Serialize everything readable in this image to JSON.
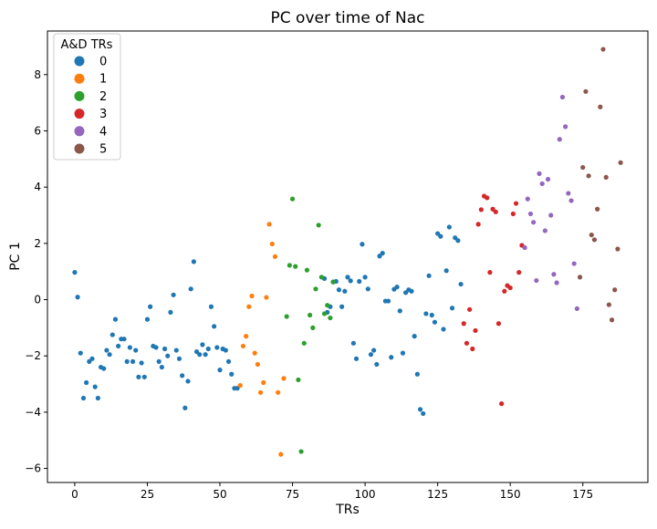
{
  "chart_data": {
    "type": "scatter",
    "title": "PC over time of Nac",
    "xlabel": "TRs",
    "ylabel": "PC 1",
    "xlim": [
      -9.4,
      197.4
    ],
    "ylim": [
      -6.5,
      9.55
    ],
    "xticks": [
      0,
      25,
      50,
      75,
      100,
      125,
      150,
      175
    ],
    "yticks": [
      -6,
      -4,
      -2,
      0,
      2,
      4,
      6,
      8
    ],
    "legend": {
      "title": "A&D TRs",
      "position": "top-left",
      "entries": [
        {
          "label": "0",
          "color": "#1f77b4"
        },
        {
          "label": "1",
          "color": "#ff7f0e"
        },
        {
          "label": "2",
          "color": "#2ca02c"
        },
        {
          "label": "3",
          "color": "#d62728"
        },
        {
          "label": "4",
          "color": "#9467bd"
        },
        {
          "label": "5",
          "color": "#8c564b"
        }
      ]
    },
    "series": [
      {
        "name": "0",
        "color": "#1f77b4",
        "points": [
          [
            0,
            0.97
          ],
          [
            1,
            0.09
          ],
          [
            2,
            -1.9
          ],
          [
            3,
            -3.5
          ],
          [
            4,
            -2.95
          ],
          [
            5,
            -2.2
          ],
          [
            6,
            -2.1
          ],
          [
            7,
            -3.1
          ],
          [
            8,
            -3.5
          ],
          [
            9,
            -2.4
          ],
          [
            10,
            -2.45
          ],
          [
            11,
            -1.8
          ],
          [
            12,
            -1.95
          ],
          [
            13,
            -1.25
          ],
          [
            14,
            -0.7
          ],
          [
            15,
            -1.65
          ],
          [
            16,
            -1.4
          ],
          [
            17,
            -1.4
          ],
          [
            18,
            -2.2
          ],
          [
            19,
            -1.7
          ],
          [
            20,
            -2.2
          ],
          [
            21,
            -1.8
          ],
          [
            22,
            -2.75
          ],
          [
            23,
            -2.25
          ],
          [
            24,
            -2.75
          ],
          [
            25,
            -0.7
          ],
          [
            26,
            -0.25
          ],
          [
            27,
            -1.65
          ],
          [
            28,
            -1.7
          ],
          [
            29,
            -2.2
          ],
          [
            30,
            -2.4
          ],
          [
            31,
            -1.75
          ],
          [
            32,
            -2.0
          ],
          [
            33,
            -0.45
          ],
          [
            34,
            0.17
          ],
          [
            35,
            -1.8
          ],
          [
            36,
            -2.1
          ],
          [
            37,
            -2.7
          ],
          [
            38,
            -3.85
          ],
          [
            39,
            -2.9
          ],
          [
            40,
            0.38
          ],
          [
            41,
            1.35
          ],
          [
            42,
            -1.85
          ],
          [
            43,
            -1.95
          ],
          [
            44,
            -1.6
          ],
          [
            45,
            -1.95
          ],
          [
            46,
            -1.75
          ],
          [
            47,
            -0.25
          ],
          [
            48,
            -0.95
          ],
          [
            49,
            -1.7
          ],
          [
            50,
            -2.5
          ],
          [
            51,
            -1.75
          ],
          [
            52,
            -1.8
          ],
          [
            53,
            -2.2
          ],
          [
            54,
            -2.65
          ],
          [
            55,
            -3.15
          ],
          [
            56,
            -3.15
          ],
          [
            86,
            0.75
          ],
          [
            87,
            -0.45
          ],
          [
            88,
            -0.25
          ],
          [
            89,
            0.63
          ],
          [
            90,
            0.65
          ],
          [
            91,
            0.35
          ],
          [
            92,
            -0.25
          ],
          [
            93,
            0.3
          ],
          [
            94,
            0.8
          ],
          [
            95,
            0.67
          ],
          [
            96,
            -1.55
          ],
          [
            97,
            -2.1
          ],
          [
            98,
            0.65
          ],
          [
            99,
            1.97
          ],
          [
            100,
            0.8
          ],
          [
            101,
            0.38
          ],
          [
            102,
            -1.95
          ],
          [
            103,
            -1.8
          ],
          [
            104,
            -2.3
          ],
          [
            105,
            1.55
          ],
          [
            106,
            1.65
          ],
          [
            107,
            -0.05
          ],
          [
            108,
            -0.05
          ],
          [
            109,
            -2.05
          ],
          [
            110,
            0.37
          ],
          [
            111,
            0.45
          ],
          [
            112,
            -0.4
          ],
          [
            113,
            -1.9
          ],
          [
            114,
            0.25
          ],
          [
            115,
            0.35
          ],
          [
            116,
            0.3
          ],
          [
            117,
            -1.3
          ],
          [
            118,
            -2.65
          ],
          [
            119,
            -3.9
          ],
          [
            120,
            -4.05
          ],
          [
            121,
            -0.5
          ],
          [
            122,
            0.85
          ],
          [
            123,
            -0.55
          ],
          [
            124,
            -0.8
          ],
          [
            125,
            2.35
          ],
          [
            126,
            2.25
          ],
          [
            127,
            -1.05
          ],
          [
            128,
            1.03
          ],
          [
            129,
            2.58
          ],
          [
            130,
            -0.3
          ],
          [
            131,
            2.2
          ],
          [
            132,
            2.1
          ],
          [
            133,
            0.55
          ]
        ]
      },
      {
        "name": "1",
        "color": "#ff7f0e",
        "points": [
          [
            57,
            -3.05
          ],
          [
            58,
            -1.65
          ],
          [
            59,
            -1.3
          ],
          [
            60,
            -0.25
          ],
          [
            61,
            0.13
          ],
          [
            62,
            -1.9
          ],
          [
            63,
            -2.3
          ],
          [
            64,
            -3.3
          ],
          [
            65,
            -2.95
          ],
          [
            66,
            0.08
          ],
          [
            67,
            2.68
          ],
          [
            68,
            1.98
          ],
          [
            69,
            1.53
          ],
          [
            70,
            -3.3
          ],
          [
            71,
            -5.5
          ],
          [
            72,
            -2.8
          ]
        ]
      },
      {
        "name": "2",
        "color": "#2ca02c",
        "points": [
          [
            73,
            -0.6
          ],
          [
            74,
            1.22
          ],
          [
            75,
            3.58
          ],
          [
            76,
            1.18
          ],
          [
            77,
            -2.85
          ],
          [
            78,
            -5.4
          ],
          [
            79,
            -1.55
          ],
          [
            80,
            1.05
          ],
          [
            81,
            -0.55
          ],
          [
            82,
            -1.0
          ],
          [
            83,
            0.38
          ],
          [
            84,
            2.65
          ],
          [
            85,
            0.8
          ],
          [
            86,
            -0.5
          ],
          [
            87,
            -0.2
          ],
          [
            88,
            -0.65
          ],
          [
            89,
            0.63
          ]
        ]
      },
      {
        "name": "3",
        "color": "#d62728",
        "points": [
          [
            134,
            -0.85
          ],
          [
            135,
            -1.55
          ],
          [
            136,
            -0.35
          ],
          [
            137,
            -1.75
          ],
          [
            138,
            -1.1
          ],
          [
            139,
            2.68
          ],
          [
            140,
            3.2
          ],
          [
            141,
            3.68
          ],
          [
            142,
            3.62
          ],
          [
            143,
            0.97
          ],
          [
            144,
            3.22
          ],
          [
            145,
            3.12
          ],
          [
            146,
            -0.85
          ],
          [
            147,
            -3.7
          ],
          [
            148,
            0.3
          ],
          [
            149,
            0.5
          ],
          [
            150,
            0.42
          ],
          [
            151,
            3.05
          ],
          [
            152,
            3.42
          ],
          [
            153,
            0.97
          ],
          [
            154,
            1.93
          ]
        ]
      },
      {
        "name": "4",
        "color": "#9467bd",
        "points": [
          [
            155,
            1.85
          ],
          [
            156,
            3.58
          ],
          [
            157,
            3.05
          ],
          [
            158,
            2.75
          ],
          [
            159,
            0.68
          ],
          [
            160,
            4.48
          ],
          [
            161,
            4.12
          ],
          [
            162,
            2.45
          ],
          [
            163,
            4.28
          ],
          [
            164,
            3.0
          ],
          [
            165,
            0.9
          ],
          [
            166,
            0.6
          ],
          [
            167,
            5.7
          ],
          [
            168,
            7.2
          ],
          [
            169,
            6.15
          ],
          [
            170,
            3.78
          ],
          [
            171,
            3.52
          ],
          [
            172,
            1.28
          ],
          [
            173,
            -0.32
          ]
        ]
      },
      {
        "name": "5",
        "color": "#8c564b",
        "points": [
          [
            174,
            0.8
          ],
          [
            175,
            4.7
          ],
          [
            176,
            7.4
          ],
          [
            177,
            4.4
          ],
          [
            178,
            2.3
          ],
          [
            179,
            2.13
          ],
          [
            180,
            3.22
          ],
          [
            181,
            6.85
          ],
          [
            182,
            8.9
          ],
          [
            183,
            4.35
          ],
          [
            184,
            -0.18
          ],
          [
            185,
            -0.72
          ],
          [
            186,
            0.35
          ],
          [
            187,
            1.8
          ],
          [
            188,
            4.87
          ]
        ]
      }
    ]
  }
}
